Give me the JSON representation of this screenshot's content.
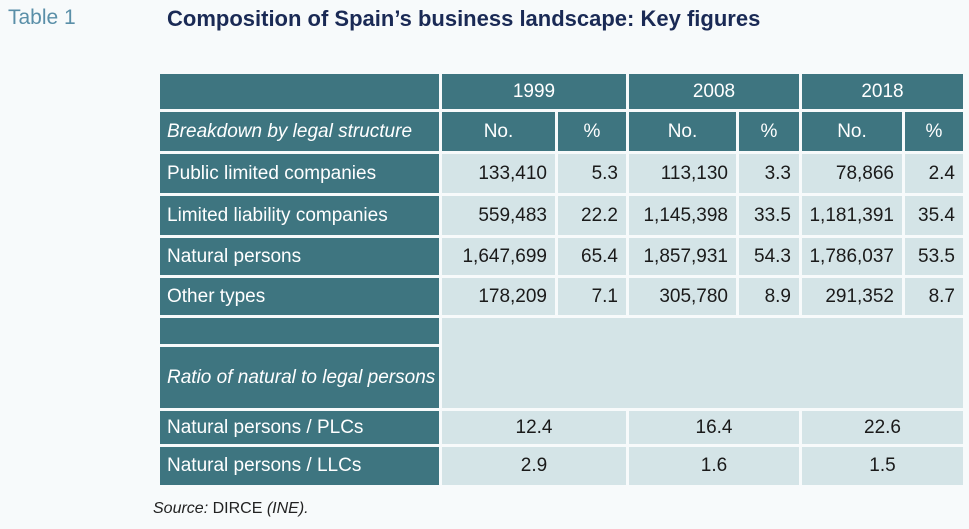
{
  "table_label": "Table 1",
  "title": "Composition of Spain’s business landscape: Key figures",
  "years": [
    "1999",
    "2008",
    "2018"
  ],
  "subheader": {
    "breakdown_label": "Breakdown by legal structure",
    "no": "No.",
    "pct": "%"
  },
  "rows": [
    {
      "label": "Public limited companies",
      "v1999_no": "133,410",
      "v1999_pct": "5.3",
      "v2008_no": "113,130",
      "v2008_pct": "3.3",
      "v2018_no": "78,866",
      "v2018_pct": "2.4"
    },
    {
      "label": "Limited liability companies",
      "v1999_no": "559,483",
      "v1999_pct": "22.2",
      "v2008_no": "1,145,398",
      "v2008_pct": "33.5",
      "v2018_no": "1,181,391",
      "v2018_pct": "35.4"
    },
    {
      "label": "Natural persons",
      "v1999_no": "1,647,699",
      "v1999_pct": "65.4",
      "v2008_no": "1,857,931",
      "v2008_pct": "54.3",
      "v2018_no": "1,786,037",
      "v2018_pct": "53.5"
    },
    {
      "label": "Other types",
      "v1999_no": "178,209",
      "v1999_pct": "7.1",
      "v2008_no": "305,780",
      "v2008_pct": "8.9",
      "v2018_no": "291,352",
      "v2018_pct": "8.7"
    }
  ],
  "ratio_heading": "Ratio of natural to legal persons",
  "ratio_rows": [
    {
      "label": "Natural persons / PLCs",
      "v1999": "12.4",
      "v2008": "16.4",
      "v2018": "22.6"
    },
    {
      "label": "Natural persons / LLCs",
      "v1999": "2.9",
      "v2008": "1.6",
      "v2018": "1.5"
    }
  ],
  "source": {
    "label": "Source:",
    "text": "DIRCE",
    "org": "(INE)."
  },
  "colors": {
    "header_bg": "#3e7580",
    "cell_bg": "#d4e4e7",
    "title": "#1a2a55",
    "table_label": "#5a8fa8"
  }
}
